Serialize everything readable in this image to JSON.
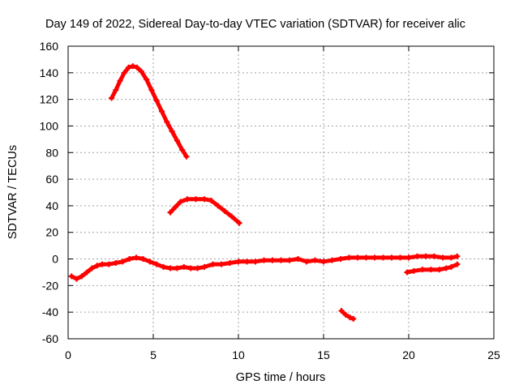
{
  "chart_data": {
    "type": "scatter",
    "title": "Day 149 of 2022, Sidereal Day-to-day VTEC variation (SDTVAR) for receiver alic",
    "xlabel": "GPS time / hours",
    "ylabel": "SDTVAR / TECUs",
    "xlim": [
      0,
      25
    ],
    "ylim": [
      -60,
      160
    ],
    "xticks": [
      0,
      5,
      10,
      15,
      20,
      25
    ],
    "yticks": [
      -60,
      -40,
      -20,
      0,
      20,
      40,
      60,
      80,
      100,
      120,
      140,
      160
    ],
    "grid": true,
    "legend": "none",
    "color": "#ff0000",
    "series": [
      {
        "name": "arc-high-peak",
        "points": [
          [
            2.55,
            121
          ],
          [
            2.8,
            127
          ],
          [
            3.05,
            134
          ],
          [
            3.3,
            140
          ],
          [
            3.55,
            144
          ],
          [
            3.8,
            145
          ],
          [
            4.05,
            144
          ],
          [
            4.3,
            141
          ],
          [
            4.6,
            135
          ],
          [
            4.9,
            127
          ],
          [
            5.2,
            119
          ],
          [
            5.5,
            111
          ],
          [
            5.8,
            103
          ],
          [
            6.1,
            96
          ],
          [
            6.4,
            89
          ],
          [
            6.7,
            82
          ],
          [
            6.95,
            77
          ]
        ]
      },
      {
        "name": "arc-mid-hump",
        "points": [
          [
            6.0,
            35
          ],
          [
            6.3,
            39
          ],
          [
            6.6,
            43
          ],
          [
            7.0,
            45
          ],
          [
            7.5,
            45
          ],
          [
            8.0,
            45
          ],
          [
            8.4,
            44
          ],
          [
            8.8,
            40
          ],
          [
            9.2,
            36
          ],
          [
            9.6,
            32
          ],
          [
            10.05,
            27
          ]
        ]
      },
      {
        "name": "arc-baseline-long",
        "points": [
          [
            0.2,
            -13
          ],
          [
            0.5,
            -15
          ],
          [
            0.8,
            -13
          ],
          [
            1.1,
            -10
          ],
          [
            1.4,
            -7
          ],
          [
            1.7,
            -5
          ],
          [
            2.0,
            -4
          ],
          [
            2.4,
            -4
          ],
          [
            2.8,
            -3
          ],
          [
            3.2,
            -2
          ],
          [
            3.6,
            0
          ],
          [
            4.0,
            1
          ],
          [
            4.4,
            0
          ],
          [
            4.8,
            -2
          ],
          [
            5.2,
            -4
          ],
          [
            5.6,
            -6
          ],
          [
            6.0,
            -7
          ],
          [
            6.4,
            -7
          ],
          [
            6.8,
            -6
          ],
          [
            7.2,
            -7
          ],
          [
            7.6,
            -7
          ],
          [
            8.0,
            -6
          ],
          [
            8.5,
            -4
          ],
          [
            9.0,
            -4
          ],
          [
            9.5,
            -3
          ],
          [
            10.0,
            -2
          ],
          [
            10.5,
            -2
          ],
          [
            11.0,
            -2
          ],
          [
            11.5,
            -1
          ],
          [
            12.0,
            -1
          ],
          [
            12.5,
            -1
          ],
          [
            13.0,
            -1
          ],
          [
            13.5,
            0
          ],
          [
            14.0,
            -2
          ],
          [
            14.5,
            -1
          ],
          [
            15.0,
            -2
          ],
          [
            15.5,
            -1
          ],
          [
            16.0,
            0
          ],
          [
            16.5,
            1
          ],
          [
            17.0,
            1
          ],
          [
            17.5,
            1
          ],
          [
            18.0,
            1
          ],
          [
            18.5,
            1
          ],
          [
            19.0,
            1
          ],
          [
            19.5,
            1
          ],
          [
            20.0,
            1
          ],
          [
            20.5,
            2
          ],
          [
            21.0,
            2
          ],
          [
            21.5,
            2
          ],
          [
            22.0,
            1
          ],
          [
            22.5,
            1
          ],
          [
            22.85,
            2
          ]
        ]
      },
      {
        "name": "arc-late-negative",
        "points": [
          [
            19.9,
            -10
          ],
          [
            20.3,
            -9
          ],
          [
            20.8,
            -8
          ],
          [
            21.3,
            -8
          ],
          [
            21.8,
            -8
          ],
          [
            22.2,
            -7
          ],
          [
            22.5,
            -6
          ],
          [
            22.85,
            -4
          ]
        ]
      },
      {
        "name": "arc-short-dip",
        "points": [
          [
            16.05,
            -39
          ],
          [
            16.3,
            -42
          ],
          [
            16.55,
            -44
          ],
          [
            16.75,
            -45
          ]
        ]
      }
    ]
  }
}
